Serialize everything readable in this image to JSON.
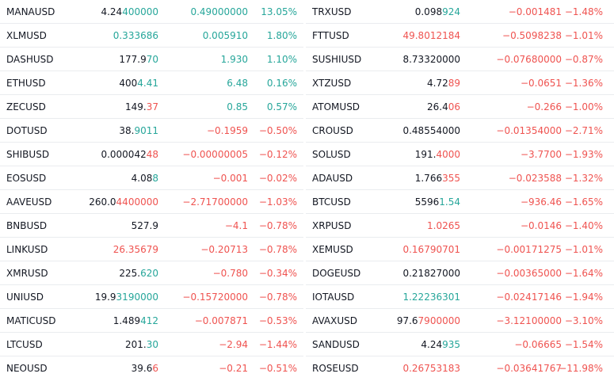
{
  "colors": {
    "up": "#26a69a",
    "down": "#ef5350",
    "neutral": "#131722"
  },
  "left": [
    {
      "symbol": "MANAUSD",
      "last_a": "4.24",
      "last_b": "400000",
      "last_dir": "up",
      "change": "0.49000000",
      "change_dir": "up",
      "pct": "13.05%",
      "pct_dir": "up"
    },
    {
      "symbol": "XLMUSD",
      "last_a": "",
      "last_b": "0.333686",
      "last_dir": "up",
      "change": "0.005910",
      "change_dir": "up",
      "pct": "1.80%",
      "pct_dir": "up"
    },
    {
      "symbol": "DASHUSD",
      "last_a": "177.9",
      "last_b": "70",
      "last_dir": "up",
      "change": "1.930",
      "change_dir": "up",
      "pct": "1.10%",
      "pct_dir": "up"
    },
    {
      "symbol": "ETHUSD",
      "last_a": "400",
      "last_b": "4.41",
      "last_dir": "up",
      "change": "6.48",
      "change_dir": "up",
      "pct": "0.16%",
      "pct_dir": "up"
    },
    {
      "symbol": "ZECUSD",
      "last_a": "149.",
      "last_b": "37",
      "last_dir": "down",
      "change": "0.85",
      "change_dir": "up",
      "pct": "0.57%",
      "pct_dir": "up"
    },
    {
      "symbol": "DOTUSD",
      "last_a": "38.",
      "last_b": "9011",
      "last_dir": "up",
      "change": "−0.1959",
      "change_dir": "down",
      "pct": "−0.50%",
      "pct_dir": "down"
    },
    {
      "symbol": "SHIBUSD",
      "last_a": "0.000042",
      "last_b": "48",
      "last_dir": "down",
      "change": "−0.00000005",
      "change_dir": "down",
      "pct": "−0.12%",
      "pct_dir": "down"
    },
    {
      "symbol": "EOSUSD",
      "last_a": "4.08",
      "last_b": "8",
      "last_dir": "up",
      "change": "−0.001",
      "change_dir": "down",
      "pct": "−0.02%",
      "pct_dir": "down"
    },
    {
      "symbol": "AAVEUSD",
      "last_a": "260.0",
      "last_b": "4400000",
      "last_dir": "down",
      "change": "−2.71700000",
      "change_dir": "down",
      "pct": "−1.03%",
      "pct_dir": "down"
    },
    {
      "symbol": "BNBUSD",
      "last_a": "527.9",
      "last_b": "",
      "last_dir": "neutral",
      "change": "−4.1",
      "change_dir": "down",
      "pct": "−0.78%",
      "pct_dir": "down"
    },
    {
      "symbol": "LINKUSD",
      "last_a": "",
      "last_b": "26.35679",
      "last_dir": "down",
      "change": "−0.20713",
      "change_dir": "down",
      "pct": "−0.78%",
      "pct_dir": "down"
    },
    {
      "symbol": "XMRUSD",
      "last_a": "225.",
      "last_b": "620",
      "last_dir": "up",
      "change": "−0.780",
      "change_dir": "down",
      "pct": "−0.34%",
      "pct_dir": "down"
    },
    {
      "symbol": "UNIUSD",
      "last_a": "19.9",
      "last_b": "3190000",
      "last_dir": "up",
      "change": "−0.15720000",
      "change_dir": "down",
      "pct": "−0.78%",
      "pct_dir": "down"
    },
    {
      "symbol": "MATICUSD",
      "last_a": "1.489",
      "last_b": "412",
      "last_dir": "up",
      "change": "−0.007871",
      "change_dir": "down",
      "pct": "−0.53%",
      "pct_dir": "down"
    },
    {
      "symbol": "LTCUSD",
      "last_a": "201.",
      "last_b": "30",
      "last_dir": "up",
      "change": "−2.94",
      "change_dir": "down",
      "pct": "−1.44%",
      "pct_dir": "down"
    },
    {
      "symbol": "NEOUSD",
      "last_a": "39.6",
      "last_b": "6",
      "last_dir": "down",
      "change": "−0.21",
      "change_dir": "down",
      "pct": "−0.51%",
      "pct_dir": "down"
    }
  ],
  "right": [
    {
      "symbol": "TRXUSD",
      "last_a": "0.098",
      "last_b": "924",
      "last_dir": "up",
      "change": "−0.001481",
      "change_dir": "down",
      "pct": "−1.48%",
      "pct_dir": "down"
    },
    {
      "symbol": "FTTUSD",
      "last_a": "",
      "last_b": "49.8012184",
      "last_dir": "down",
      "change": "−0.5098238",
      "change_dir": "down",
      "pct": "−1.01%",
      "pct_dir": "down"
    },
    {
      "symbol": "SUSHIUSD",
      "last_a": "8.73320000",
      "last_b": "",
      "last_dir": "neutral",
      "change": "−0.07680000",
      "change_dir": "down",
      "pct": "−0.87%",
      "pct_dir": "down"
    },
    {
      "symbol": "XTZUSD",
      "last_a": "4.72",
      "last_b": "89",
      "last_dir": "down",
      "change": "−0.0651",
      "change_dir": "down",
      "pct": "−1.36%",
      "pct_dir": "down"
    },
    {
      "symbol": "ATOMUSD",
      "last_a": "26.4",
      "last_b": "06",
      "last_dir": "down",
      "change": "−0.266",
      "change_dir": "down",
      "pct": "−1.00%",
      "pct_dir": "down"
    },
    {
      "symbol": "CROUSD",
      "last_a": "0.48554000",
      "last_b": "",
      "last_dir": "neutral",
      "change": "−0.01354000",
      "change_dir": "down",
      "pct": "−2.71%",
      "pct_dir": "down"
    },
    {
      "symbol": "SOLUSD",
      "last_a": "191.",
      "last_b": "4000",
      "last_dir": "down",
      "change": "−3.7700",
      "change_dir": "down",
      "pct": "−1.93%",
      "pct_dir": "down"
    },
    {
      "symbol": "ADAUSD",
      "last_a": "1.766",
      "last_b": "355",
      "last_dir": "down",
      "change": "−0.023588",
      "change_dir": "down",
      "pct": "−1.32%",
      "pct_dir": "down"
    },
    {
      "symbol": "BTCUSD",
      "last_a": "5596",
      "last_b": "1.54",
      "last_dir": "up",
      "change": "−936.46",
      "change_dir": "down",
      "pct": "−1.65%",
      "pct_dir": "down"
    },
    {
      "symbol": "XRPUSD",
      "last_a": "",
      "last_b": "1.0265",
      "last_dir": "down",
      "change": "−0.0146",
      "change_dir": "down",
      "pct": "−1.40%",
      "pct_dir": "down"
    },
    {
      "symbol": "XEMUSD",
      "last_a": "",
      "last_b": "0.16790701",
      "last_dir": "down",
      "change": "−0.00171275",
      "change_dir": "down",
      "pct": "−1.01%",
      "pct_dir": "down"
    },
    {
      "symbol": "DOGEUSD",
      "last_a": "0.21827000",
      "last_b": "",
      "last_dir": "neutral",
      "change": "−0.00365000",
      "change_dir": "down",
      "pct": "−1.64%",
      "pct_dir": "down"
    },
    {
      "symbol": "IOTAUSD",
      "last_a": "",
      "last_b": "1.22236301",
      "last_dir": "up",
      "change": "−0.02417146",
      "change_dir": "down",
      "pct": "−1.94%",
      "pct_dir": "down"
    },
    {
      "symbol": "AVAXUSD",
      "last_a": "97.6",
      "last_b": "7900000",
      "last_dir": "down",
      "change": "−3.12100000",
      "change_dir": "down",
      "pct": "−3.10%",
      "pct_dir": "down"
    },
    {
      "symbol": "SANDUSD",
      "last_a": "4.24",
      "last_b": "935",
      "last_dir": "up",
      "change": "−0.06665",
      "change_dir": "down",
      "pct": "−1.54%",
      "pct_dir": "down"
    },
    {
      "symbol": "ROSEUSD",
      "last_a": "",
      "last_b": "0.26753183",
      "last_dir": "down",
      "change": "−0.03641767",
      "change_dir": "down",
      "pct": "−11.98%",
      "pct_dir": "down"
    }
  ]
}
